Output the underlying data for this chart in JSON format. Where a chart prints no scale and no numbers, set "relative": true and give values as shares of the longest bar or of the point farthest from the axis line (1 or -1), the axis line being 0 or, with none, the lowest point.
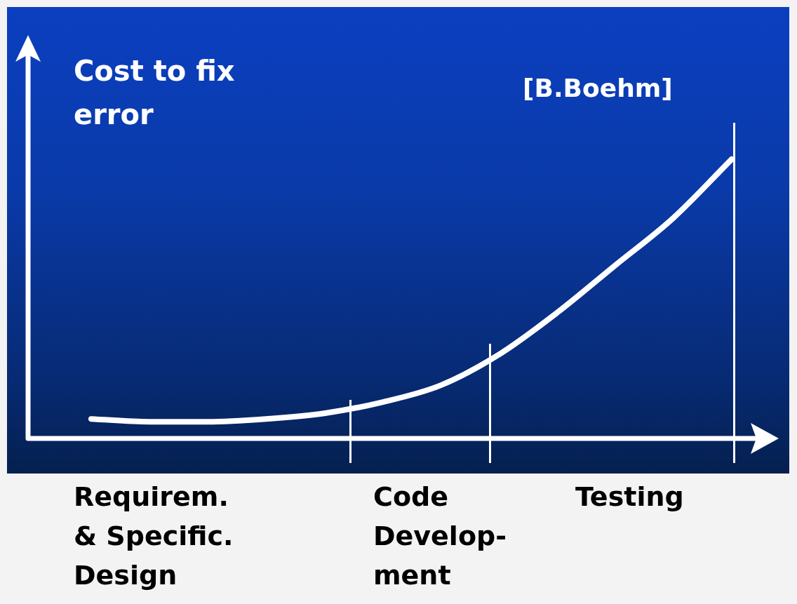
{
  "chart_data": {
    "type": "line",
    "ylabel": "Cost to fix error",
    "relative": true,
    "categories": [
      null,
      null,
      null,
      null,
      null,
      null,
      null,
      null,
      null,
      null,
      null,
      null
    ],
    "series": [
      {
        "color": "#ffffff",
        "values": [
          0.07,
          0.06,
          0.06,
          0.07,
          0.09,
          0.13,
          0.19,
          0.3,
          0.45,
          0.62,
          0.79,
          1
        ]
      }
    ],
    "annotations": [
      "[B.Boehm]",
      "Requirem.\n& Specific.\nDesign",
      "Code\nDevelop-\nment",
      "Testing"
    ],
    "legend": false,
    "marker": "none",
    "line_style": "solid",
    "tick_labels": false
  }
}
